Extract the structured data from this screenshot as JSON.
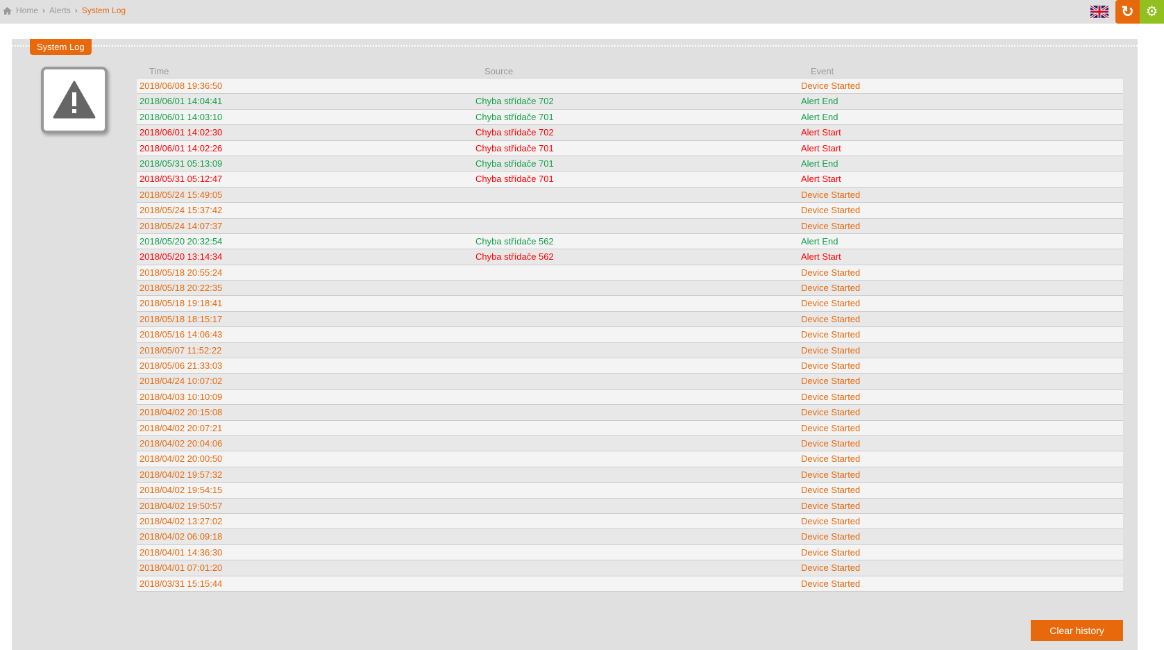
{
  "breadcrumb": {
    "home": "Home",
    "alerts": "Alerts",
    "current": "System Log"
  },
  "header": {
    "language": "English (UK)",
    "refresh_icon": "refresh-icon",
    "settings_icon": "gears-icon"
  },
  "colors": {
    "accent": "#e8690b",
    "green": "#92c01f",
    "device": "#e8690b",
    "alert_end": "#12a04a",
    "alert_start": "#ff0000"
  },
  "panel": {
    "title": "System Log",
    "icon": "warning-icon"
  },
  "table": {
    "headers": [
      "Time",
      "Source",
      "Event"
    ],
    "rows": [
      [
        "2018/06/08 19:36:50",
        "",
        "Device Started",
        "device"
      ],
      [
        "2018/06/01 14:04:41",
        "Chyba střídače 702",
        "Alert End",
        "end"
      ],
      [
        "2018/06/01 14:03:10",
        "Chyba střídače 701",
        "Alert End",
        "end"
      ],
      [
        "2018/06/01 14:02:30",
        "Chyba střídače 702",
        "Alert Start",
        "start"
      ],
      [
        "2018/06/01 14:02:26",
        "Chyba střídače 701",
        "Alert Start",
        "start"
      ],
      [
        "2018/05/31 05:13:09",
        "Chyba střídače 701",
        "Alert End",
        "end"
      ],
      [
        "2018/05/31 05:12:47",
        "Chyba střídače 701",
        "Alert Start",
        "start"
      ],
      [
        "2018/05/24 15:49:05",
        "",
        "Device Started",
        "device"
      ],
      [
        "2018/05/24 15:37:42",
        "",
        "Device Started",
        "device"
      ],
      [
        "2018/05/24 14:07:37",
        "",
        "Device Started",
        "device"
      ],
      [
        "2018/05/20 20:32:54",
        "Chyba střídače 562",
        "Alert End",
        "end"
      ],
      [
        "2018/05/20 13:14:34",
        "Chyba střídače 562",
        "Alert Start",
        "start"
      ],
      [
        "2018/05/18 20:55:24",
        "",
        "Device Started",
        "device"
      ],
      [
        "2018/05/18 20:22:35",
        "",
        "Device Started",
        "device"
      ],
      [
        "2018/05/18 19:18:41",
        "",
        "Device Started",
        "device"
      ],
      [
        "2018/05/18 18:15:17",
        "",
        "Device Started",
        "device"
      ],
      [
        "2018/05/16 14:06:43",
        "",
        "Device Started",
        "device"
      ],
      [
        "2018/05/07 11:52:22",
        "",
        "Device Started",
        "device"
      ],
      [
        "2018/05/06 21:33:03",
        "",
        "Device Started",
        "device"
      ],
      [
        "2018/04/24 10:07:02",
        "",
        "Device Started",
        "device"
      ],
      [
        "2018/04/03 10:10:09",
        "",
        "Device Started",
        "device"
      ],
      [
        "2018/04/02 20:15:08",
        "",
        "Device Started",
        "device"
      ],
      [
        "2018/04/02 20:07:21",
        "",
        "Device Started",
        "device"
      ],
      [
        "2018/04/02 20:04:06",
        "",
        "Device Started",
        "device"
      ],
      [
        "2018/04/02 20:00:50",
        "",
        "Device Started",
        "device"
      ],
      [
        "2018/04/02 19:57:32",
        "",
        "Device Started",
        "device"
      ],
      [
        "2018/04/02 19:54:15",
        "",
        "Device Started",
        "device"
      ],
      [
        "2018/04/02 19:50:57",
        "",
        "Device Started",
        "device"
      ],
      [
        "2018/04/02 13:27:02",
        "",
        "Device Started",
        "device"
      ],
      [
        "2018/04/02 06:09:18",
        "",
        "Device Started",
        "device"
      ],
      [
        "2018/04/01 14:36:30",
        "",
        "Device Started",
        "device"
      ],
      [
        "2018/04/01 07:01:20",
        "",
        "Device Started",
        "device"
      ],
      [
        "2018/03/31 15:15:44",
        "",
        "Device Started",
        "device"
      ]
    ]
  },
  "clear_button": "Clear history"
}
